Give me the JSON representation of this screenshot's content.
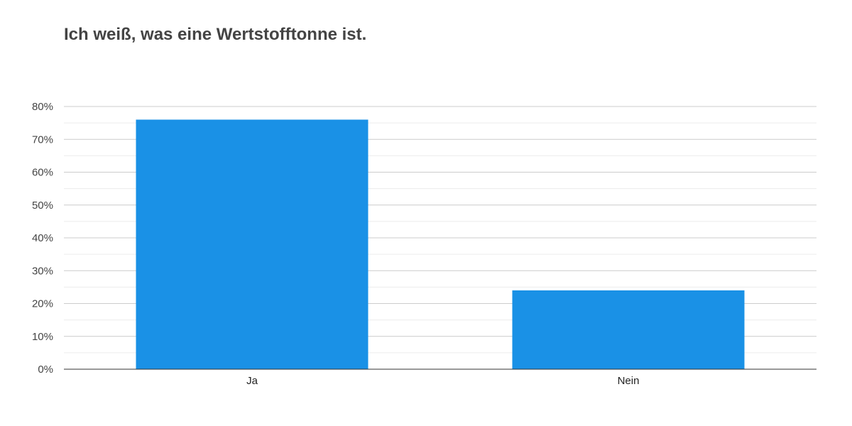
{
  "chart_data": {
    "type": "bar",
    "title": "Ich weiß, was eine Wertstofftonne ist.",
    "categories": [
      "Ja",
      "Nein"
    ],
    "values": [
      76,
      24
    ],
    "unit": "%",
    "ylim": [
      0,
      80
    ],
    "yticks": [
      "0%",
      "10%",
      "20%",
      "30%",
      "40%",
      "50%",
      "60%",
      "70%",
      "80%"
    ],
    "grid": true,
    "bar_color": "#1a91e6"
  }
}
